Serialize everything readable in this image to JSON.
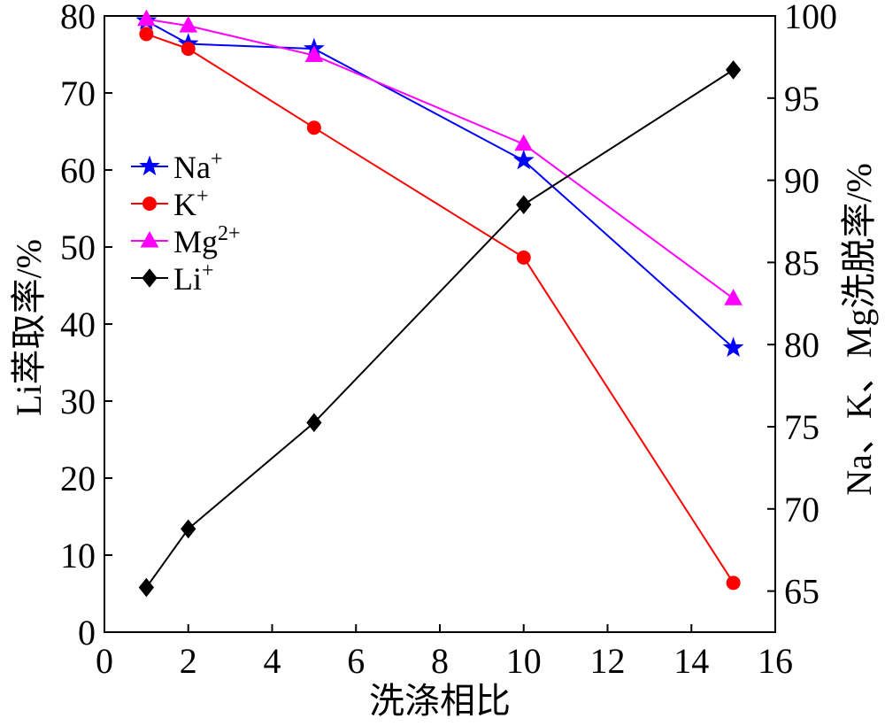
{
  "chart_data": {
    "type": "line",
    "xlabel": "洗涤相比",
    "ylabel_left": "Li萃取率/%",
    "ylabel_right": "Na、K、Mg洗脱率/%",
    "xlim": [
      0,
      16
    ],
    "ylim_left": [
      0,
      80
    ],
    "ylim_right": [
      62.5,
      100
    ],
    "x_ticks": [
      0,
      2,
      4,
      6,
      8,
      10,
      12,
      14,
      16
    ],
    "y_ticks_left": [
      0,
      10,
      20,
      30,
      40,
      50,
      60,
      70,
      80
    ],
    "y_ticks_right": [
      65,
      70,
      75,
      80,
      85,
      90,
      95,
      100
    ],
    "grid": false,
    "legend_position": "upper-left",
    "x": [
      1,
      2,
      5,
      10,
      15
    ],
    "series": [
      {
        "name": "Na+",
        "axis": "right",
        "color": "#0000ff",
        "marker": "star",
        "values": [
          99.7,
          98.3,
          98.0,
          91.2,
          79.8
        ]
      },
      {
        "name": "K+",
        "axis": "right",
        "color": "#ff0000",
        "marker": "circle",
        "values": [
          98.9,
          98.0,
          93.2,
          85.3,
          65.5
        ]
      },
      {
        "name": "Mg2+",
        "axis": "right",
        "color": "#ff00ff",
        "marker": "triangle",
        "values": [
          99.8,
          99.4,
          97.6,
          92.2,
          82.8
        ]
      },
      {
        "name": "Li+",
        "axis": "left",
        "color": "#000000",
        "marker": "diamond",
        "values": [
          5.8,
          13.4,
          27.2,
          55.5,
          73.0
        ]
      }
    ]
  }
}
